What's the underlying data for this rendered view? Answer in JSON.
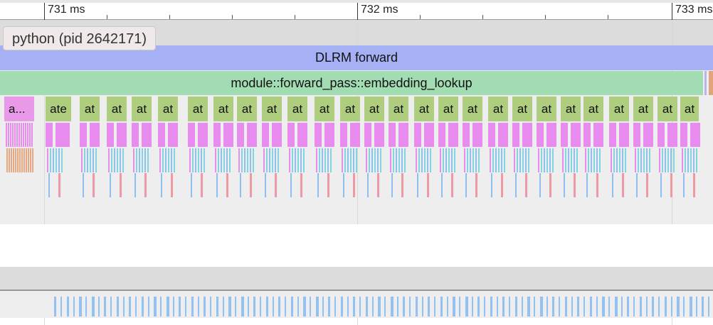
{
  "ruler": {
    "ticks": [
      "731 ms",
      "732 ms",
      "733 ms"
    ]
  },
  "process": {
    "label": "python (pid 2642171)"
  },
  "slices": {
    "top": "DLRM forward",
    "second": "module::forward_pass::embedding_lookup",
    "first_small": "a...",
    "second_small": "ate",
    "repeat_label": "at",
    "repeat_count": 25
  },
  "colors": {
    "dlrm": "#a6b1f5",
    "embedding": "#a2dcb3",
    "op": "#aecd7f",
    "kernel": "#e98cf0",
    "gpu": "#93c1f2"
  }
}
